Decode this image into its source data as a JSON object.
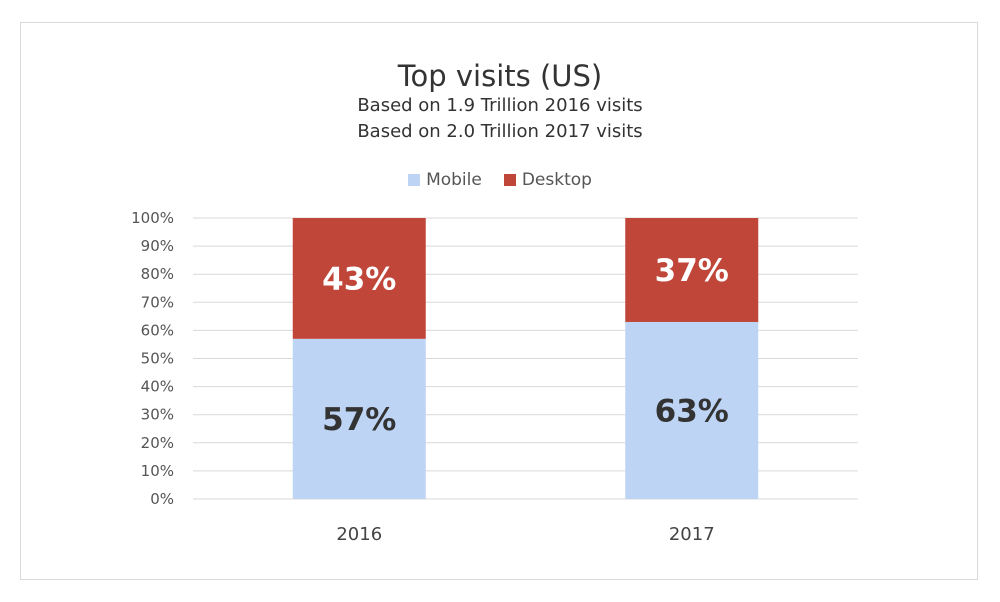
{
  "chart_data": {
    "type": "bar",
    "stacked": true,
    "title": "Top visits (US)",
    "subtitle": [
      "Based on 1.9 Trillion 2016 visits",
      "Based on 2.0 Trillion 2017 visits"
    ],
    "categories": [
      "2016",
      "2017"
    ],
    "series": [
      {
        "name": "Mobile",
        "values": [
          57,
          63
        ],
        "color": "#bdd4f4",
        "labels": [
          "57%",
          "63%"
        ],
        "label_color": "#333333"
      },
      {
        "name": "Desktop",
        "values": [
          43,
          37
        ],
        "color": "#c0463a",
        "labels": [
          "43%",
          "37%"
        ],
        "label_color": "#ffffff"
      }
    ],
    "ylim": [
      0,
      100
    ],
    "yticks": [
      "0%",
      "10%",
      "20%",
      "30%",
      "40%",
      "50%",
      "60%",
      "70%",
      "80%",
      "90%",
      "100%"
    ],
    "grid": true,
    "legend_position": "top"
  }
}
